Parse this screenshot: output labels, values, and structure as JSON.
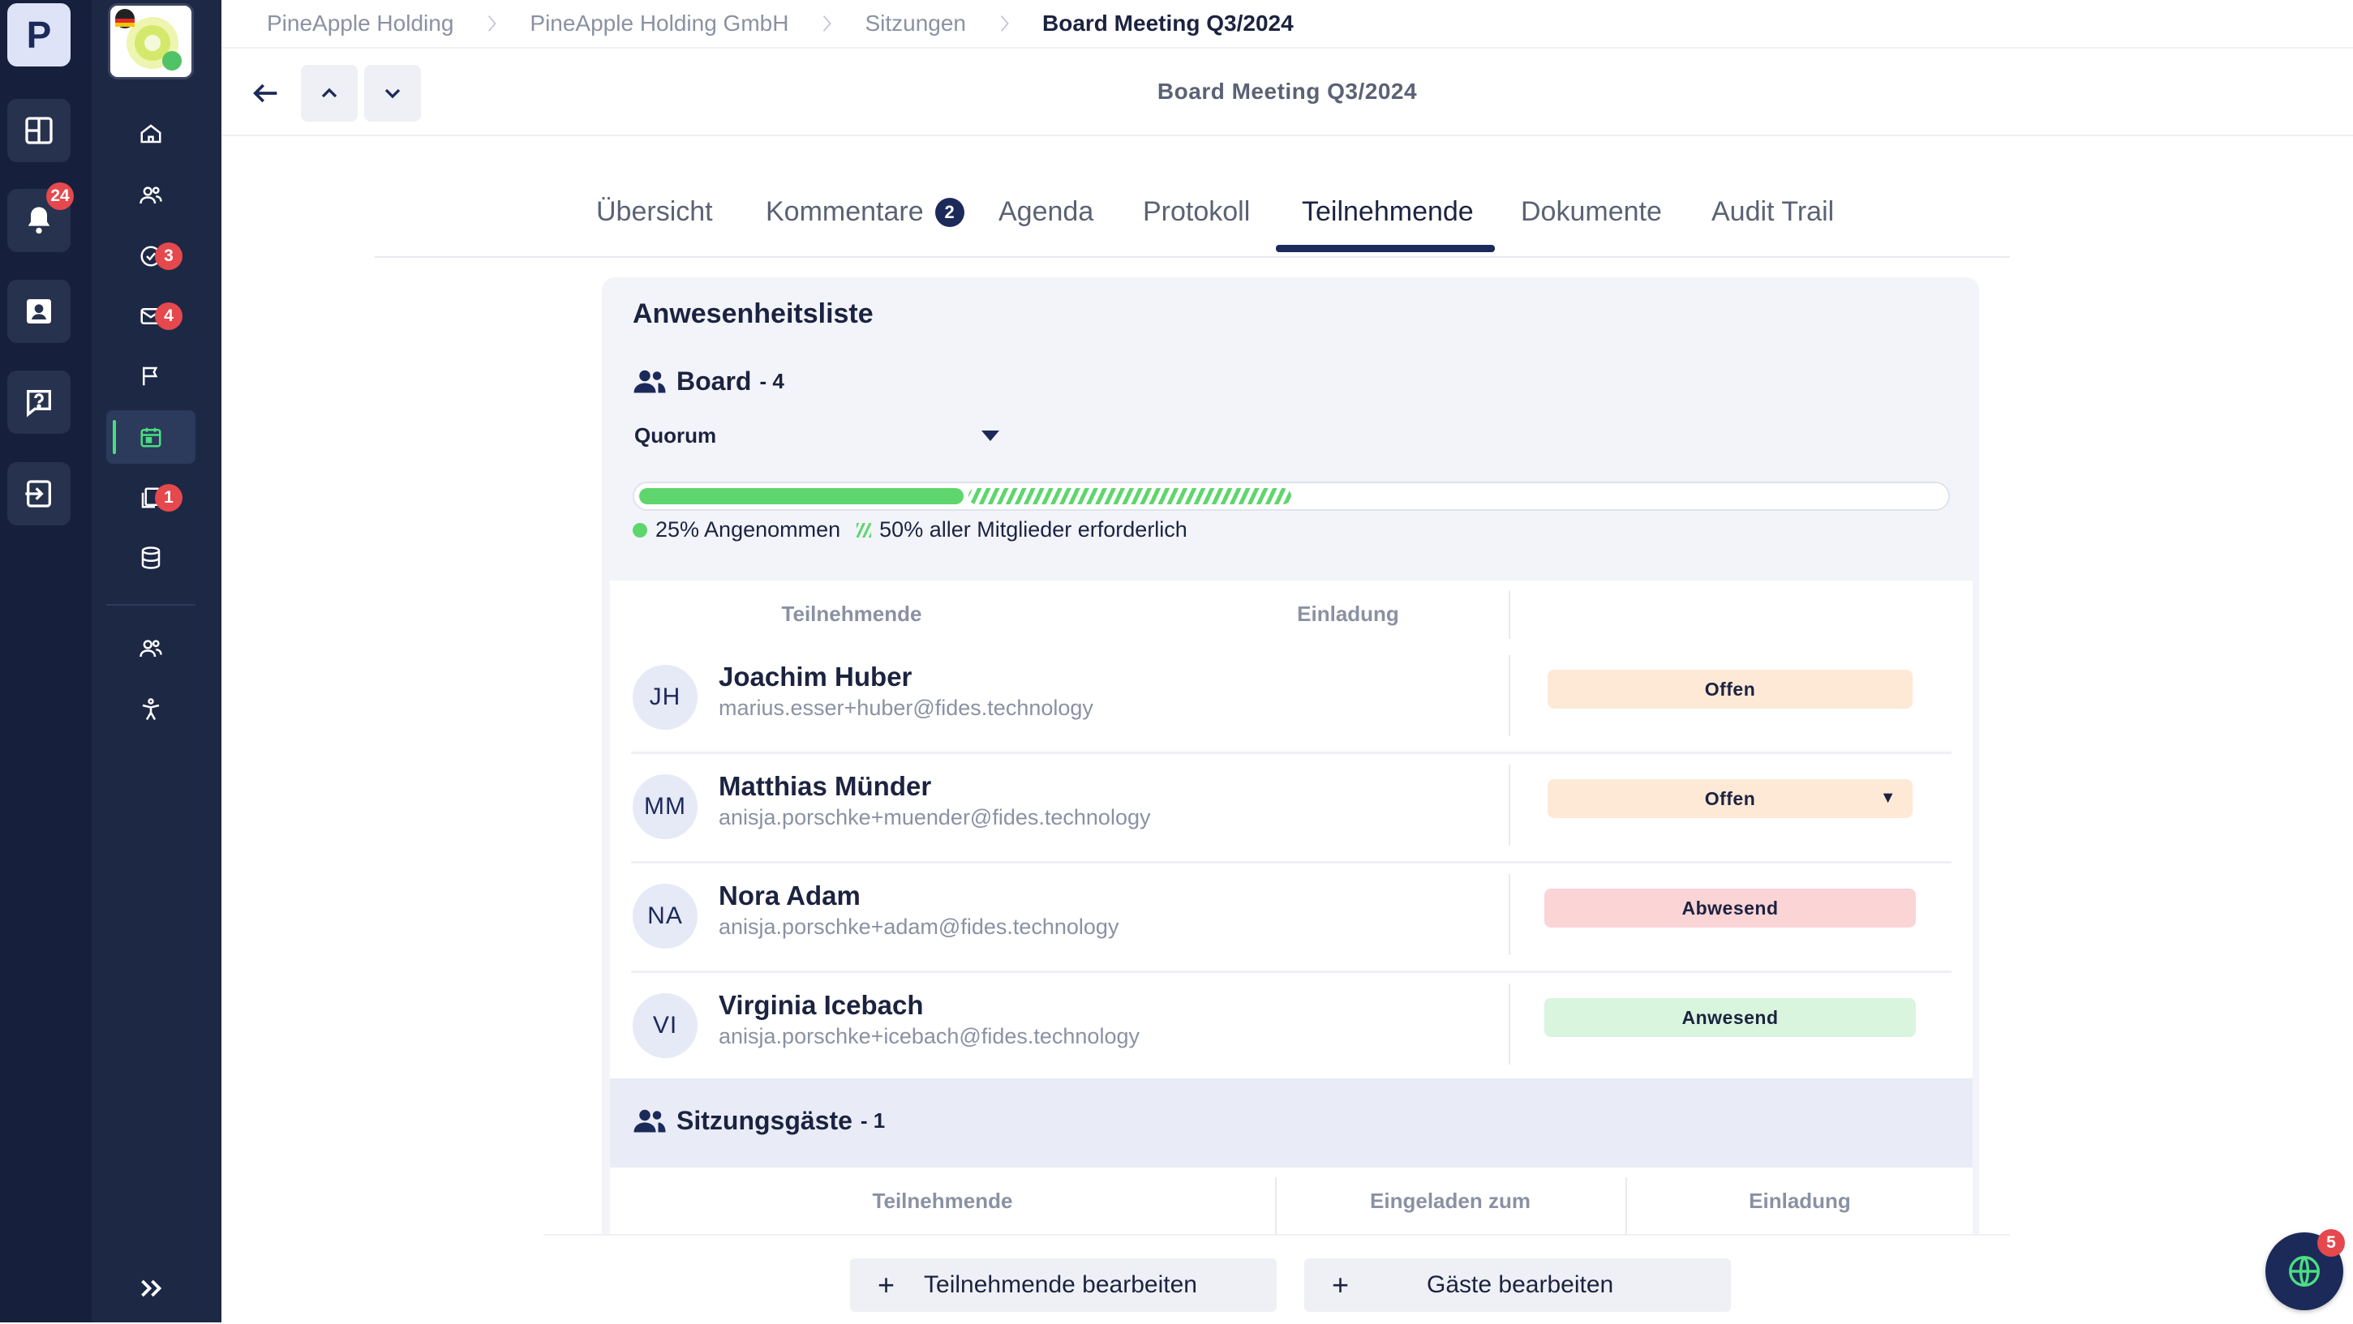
{
  "app": {
    "logo_letter": "P",
    "notification_count": "24"
  },
  "nav": {
    "badges": {
      "tasks": "3",
      "messages": "4",
      "documents": "1"
    }
  },
  "breadcrumb": [
    "PineApple Holding",
    "PineApple Holding GmbH",
    "Sitzungen",
    "Board Meeting Q3/2024"
  ],
  "toolbar": {
    "title": "Board Meeting Q3/2024"
  },
  "tabs": [
    {
      "label": "Übersicht"
    },
    {
      "label": "Kommentare",
      "count": "2"
    },
    {
      "label": "Agenda"
    },
    {
      "label": "Protokoll"
    },
    {
      "label": "Teilnehmende",
      "active": true
    },
    {
      "label": "Dokumente"
    },
    {
      "label": "Audit Trail"
    }
  ],
  "attendance": {
    "title": "Anwesenheitsliste",
    "board": {
      "name": "Board",
      "count": "- 4"
    },
    "quorum": {
      "label": "Quorum",
      "accepted_fraction": 0.25,
      "required_fraction": 0.5,
      "accepted_text": "25% Angenommen",
      "required_text": "50% aller Mitglieder erforderlich"
    },
    "columns": {
      "participants": "Teilnehmende",
      "invitation": "Einladung"
    },
    "participants": [
      {
        "initials": "JH",
        "name": "Joachim Huber",
        "email": "marius.esser+huber@fides.technology",
        "status": "Offen"
      },
      {
        "initials": "MM",
        "name": "Matthias Münder",
        "email": "anisja.porschke+muender@fides.technology",
        "status": "Offen",
        "dropdown": "▼"
      },
      {
        "initials": "NA",
        "name": "Nora Adam",
        "email": "anisja.porschke+adam@fides.technology",
        "status": "Abwesend"
      },
      {
        "initials": "VI",
        "name": "Virginia Icebach",
        "email": "anisja.porschke+icebach@fides.technology",
        "status": "Anwesend"
      }
    ],
    "guests": {
      "name": "Sitzungsgäste",
      "count": "- 1",
      "columns": {
        "participants": "Teilnehmende",
        "invited_to": "Eingeladen zum",
        "invitation": "Einladung"
      }
    }
  },
  "footer": {
    "edit_participants": "Teilnehmende bearbeiten",
    "edit_guests": "Gäste bearbeiten",
    "plus": "+"
  },
  "fab": {
    "badge": "5"
  },
  "colors": {
    "rail": "#16203c",
    "sidebar": "#1d2845",
    "accent": "#1c2a5a",
    "success": "#5fd66d",
    "badge": "#e5484d",
    "status_offen": "#fde9d6",
    "status_abwesend": "#fbd4d6",
    "status_anwesend": "#d9f5dd"
  }
}
